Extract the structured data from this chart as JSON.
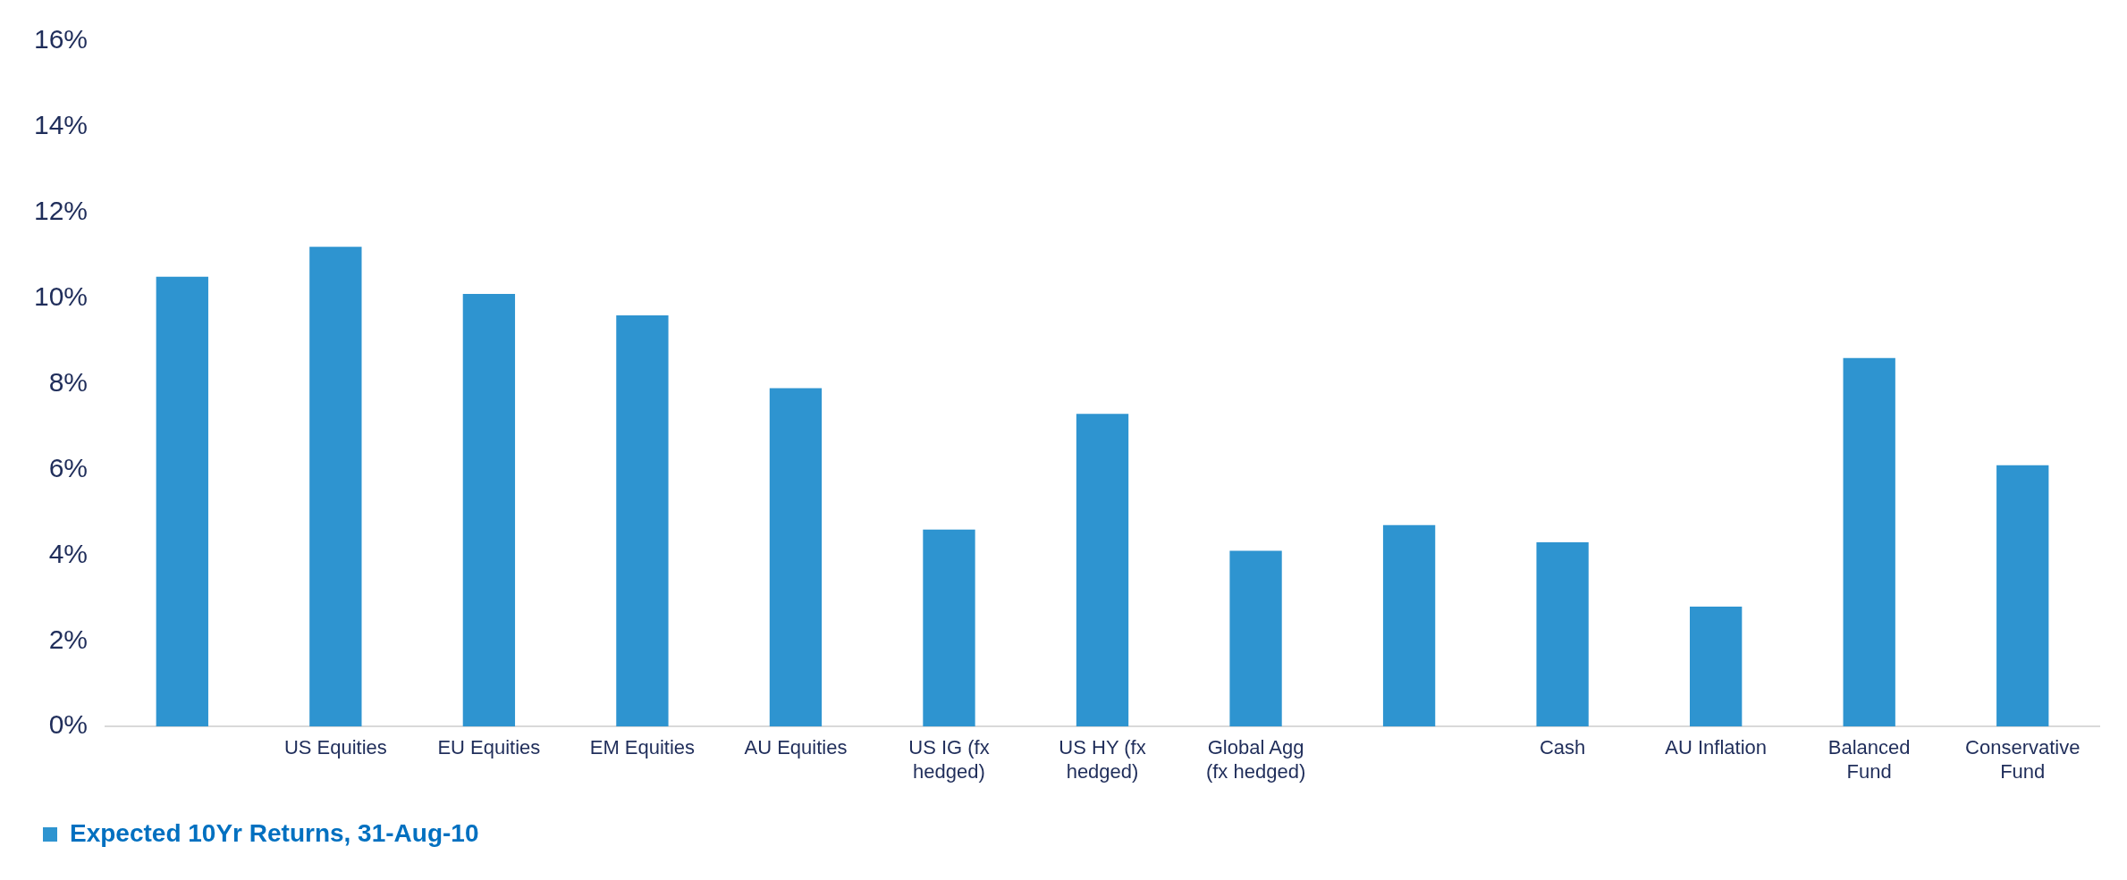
{
  "chart_data": {
    "type": "bar",
    "categories": [
      null,
      "US Equities",
      "EU Equities",
      "EM Equities",
      "AU Equities",
      "US IG (fx hedged)",
      "US HY (fx hedged)",
      "Global Agg (fx hedged)",
      null,
      "Cash",
      "AU Inflation",
      "Balanced Fund",
      "Conservative Fund"
    ],
    "series": [
      {
        "name": "Expected 10Yr Returns, 31-Aug-10",
        "color": "#2e94d0",
        "values": [
          10.5,
          11.2,
          10.1,
          9.6,
          7.9,
          4.6,
          7.3,
          4.1,
          4.7,
          4.3,
          2.8,
          8.6,
          6.1
        ]
      }
    ],
    "ylim": [
      0,
      16
    ],
    "yticks": [
      {
        "value": 0,
        "label": "0%"
      },
      {
        "value": 2,
        "label": "2%"
      },
      {
        "value": 4,
        "label": "4%"
      },
      {
        "value": 6,
        "label": "6%"
      },
      {
        "value": 8,
        "label": "8%"
      },
      {
        "value": 10,
        "label": "10%"
      },
      {
        "value": 12,
        "label": "12%"
      },
      {
        "value": 14,
        "label": "14%"
      },
      {
        "value": 16,
        "label": "16%"
      }
    ],
    "grid": false,
    "legend": "bottom left"
  }
}
